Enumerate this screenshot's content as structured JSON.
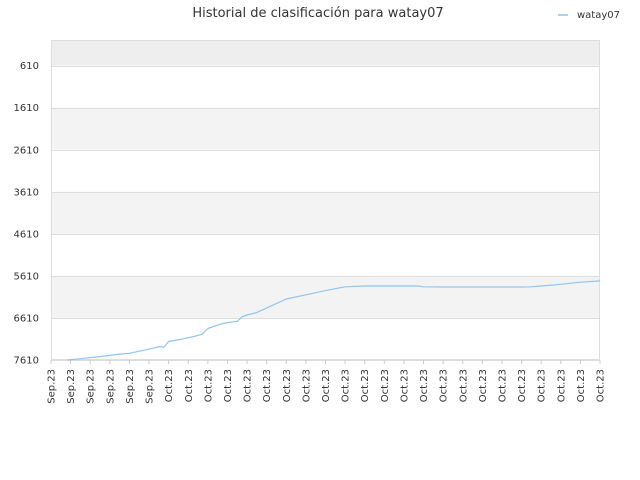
{
  "chart_data": {
    "type": "line",
    "title": "Historial de clasificación para watay07",
    "xlabel": "",
    "ylabel": "",
    "legend": {
      "position": "top-right"
    },
    "grid": true,
    "y_inverted": true,
    "ylim": [
      7610,
      0
    ],
    "y_ticks": [
      610,
      1610,
      2610,
      3610,
      4610,
      5610,
      6610,
      7610
    ],
    "y_tick_labels": [
      "610",
      "1610",
      "2610",
      "3610",
      "4610",
      "5610",
      "6610",
      "7610"
    ],
    "x_tick_labels": [
      "Sep.23",
      "Sep.23",
      "Sep.23",
      "Sep.23",
      "Sep.23",
      "Sep.23",
      "Oct.23",
      "Oct.23",
      "Oct.23",
      "Oct.23",
      "Oct.23",
      "Oct.23",
      "Oct.23",
      "Oct.23",
      "Oct.23",
      "Oct.23",
      "Oct.23",
      "Oct.23",
      "Oct.23",
      "Oct.23",
      "Oct.23",
      "Oct.23",
      "Oct.23",
      "Oct.23",
      "Oct.23",
      "Oct.23",
      "Oct.23",
      "Oct.23",
      "Oct.23"
    ],
    "series": [
      {
        "name": "watay07",
        "color": "#90c4f0",
        "x": [
          0.85,
          1.5,
          2.5,
          3.5,
          4.0,
          4.5,
          5.3,
          5.55,
          5.75,
          6.0,
          6.6,
          7.0,
          7.2,
          7.7,
          8.0,
          8.5,
          8.6,
          8.8,
          9.0,
          9.5,
          9.75,
          10.0,
          10.5,
          11.0,
          12.0,
          13.0,
          13.5,
          14.0,
          15.0,
          16.0,
          17.0,
          18.0,
          18.7,
          19.0,
          20.0,
          21.0,
          22.0,
          23.0,
          24.0,
          24.5,
          25.0,
          26.0,
          27.0,
          28.0
        ],
        "y": [
          7610,
          7580,
          7530,
          7470,
          7450,
          7400,
          7320,
          7290,
          7310,
          7170,
          7120,
          7080,
          7060,
          7000,
          6860,
          6780,
          6760,
          6740,
          6720,
          6690,
          6580,
          6540,
          6480,
          6370,
          6160,
          6060,
          6010,
          5960,
          5870,
          5850,
          5850,
          5850,
          5850,
          5870,
          5875,
          5875,
          5875,
          5875,
          5875,
          5870,
          5850,
          5810,
          5760,
          5730
        ]
      }
    ]
  }
}
